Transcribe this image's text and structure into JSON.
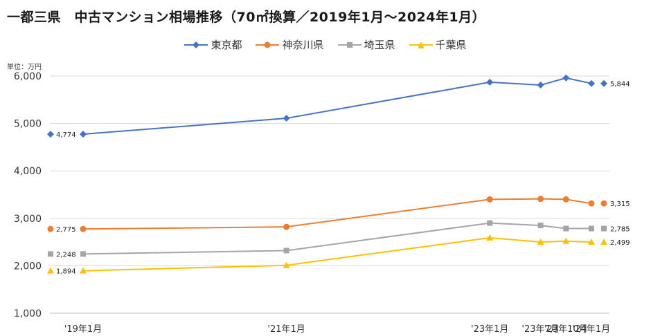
{
  "chart_data": {
    "type": "line",
    "title": "一都三県　中古マンション相場推移（70㎡換算／2019年1月～2024年1月）",
    "unit_label": "単位：万円",
    "categories": [
      "'19年1月",
      "'21年1月",
      "'23年1月",
      "'23年7月",
      "'23年10月",
      "'24年1月"
    ],
    "x_positions": [
      0,
      24,
      48,
      54,
      57,
      60
    ],
    "ylim": [
      1000,
      6000
    ],
    "yticks": [
      1000,
      2000,
      3000,
      4000,
      5000,
      6000
    ],
    "ytick_labels": [
      "1,000",
      "2,000",
      "3,000",
      "4,000",
      "5,000",
      "6,000"
    ],
    "grid": true,
    "legend_position": "top-center",
    "series": [
      {
        "name": "東京都",
        "marker": "diamond",
        "color": "#4472C4",
        "values": [
          4774,
          5110,
          5870,
          5810,
          5960,
          5844
        ],
        "start_label": "4,774",
        "end_label": "5,844"
      },
      {
        "name": "神奈川県",
        "marker": "circle",
        "color": "#ED7D31",
        "values": [
          2775,
          2820,
          3400,
          3410,
          3400,
          3315
        ],
        "start_label": "2,775",
        "end_label": "3,315"
      },
      {
        "name": "埼玉県",
        "marker": "square",
        "color": "#A5A5A5",
        "values": [
          2248,
          2320,
          2900,
          2850,
          2785,
          2785
        ],
        "start_label": "2,248",
        "end_label": "2,785"
      },
      {
        "name": "千葉県",
        "marker": "triangle",
        "color": "#FFC000",
        "values": [
          1894,
          2010,
          2590,
          2500,
          2520,
          2499
        ],
        "start_label": "1,894",
        "end_label": "2,499"
      }
    ]
  }
}
